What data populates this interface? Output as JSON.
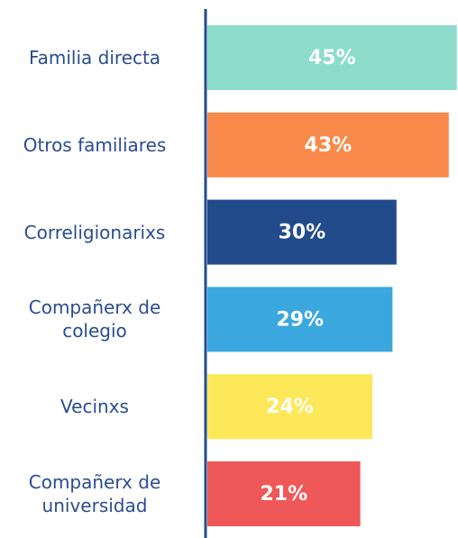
{
  "chart_data": {
    "type": "bar",
    "orientation": "horizontal",
    "categories": [
      "Familia directa",
      "Otros familiares",
      "Correligionarixs",
      "Compañerx de colegio",
      "Vecinxs",
      "Compañerx de universidad"
    ],
    "values": [
      45,
      43,
      30,
      29,
      24,
      21
    ],
    "value_labels": [
      "45%",
      "43%",
      "30%",
      "29%",
      "24%",
      "21%"
    ],
    "colors": [
      "#8ddccc",
      "#f98a4b",
      "#224b8b",
      "#3aa8de",
      "#fde85a",
      "#ef5858"
    ]
  }
}
